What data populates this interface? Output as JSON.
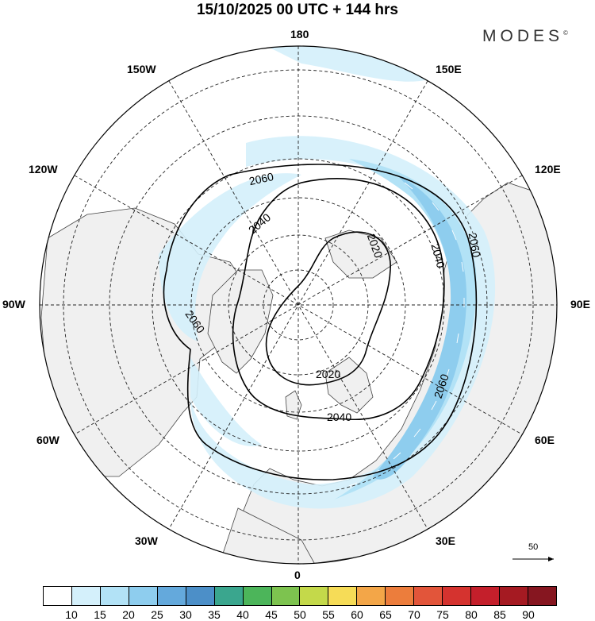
{
  "title": "15/10/2025  00 UTC  + 144 hrs",
  "brand": "MODES",
  "brand_mark": "©",
  "longitude_labels": {
    "top": "180",
    "bottom": "0",
    "left": "90W",
    "right": "90E",
    "upper_left_1": "150W",
    "upper_left_2": "120W",
    "upper_right_1": "150E",
    "upper_right_2": "120E",
    "lower_left_1": "60W",
    "lower_left_2": "30W",
    "lower_right_1": "60E",
    "lower_right_2": "30E"
  },
  "contours": [
    {
      "value": "2020",
      "label_count": 2
    },
    {
      "value": "2040",
      "label_count": 3
    },
    {
      "value": "2060",
      "label_count": 4
    }
  ],
  "vector_scale": {
    "label": "50"
  },
  "colorbar": {
    "ticks": [
      "10",
      "15",
      "20",
      "25",
      "30",
      "35",
      "40",
      "45",
      "50",
      "55",
      "60",
      "65",
      "70",
      "75",
      "80",
      "85",
      "90"
    ],
    "colors": [
      "#ffffff",
      "#d4f0fb",
      "#b2e2f6",
      "#8ecdee",
      "#64a9dc",
      "#4c8fc8",
      "#3aa68e",
      "#4cb55a",
      "#7dc34f",
      "#c4d94a",
      "#f6dc57",
      "#f3a648",
      "#ec7d3c",
      "#e2553a",
      "#d5332f",
      "#c41f2b",
      "#a51a22",
      "#861620"
    ]
  },
  "icons": {
    "north-arrow": "none",
    "vector-arrow": "arrow-right-icon"
  }
}
